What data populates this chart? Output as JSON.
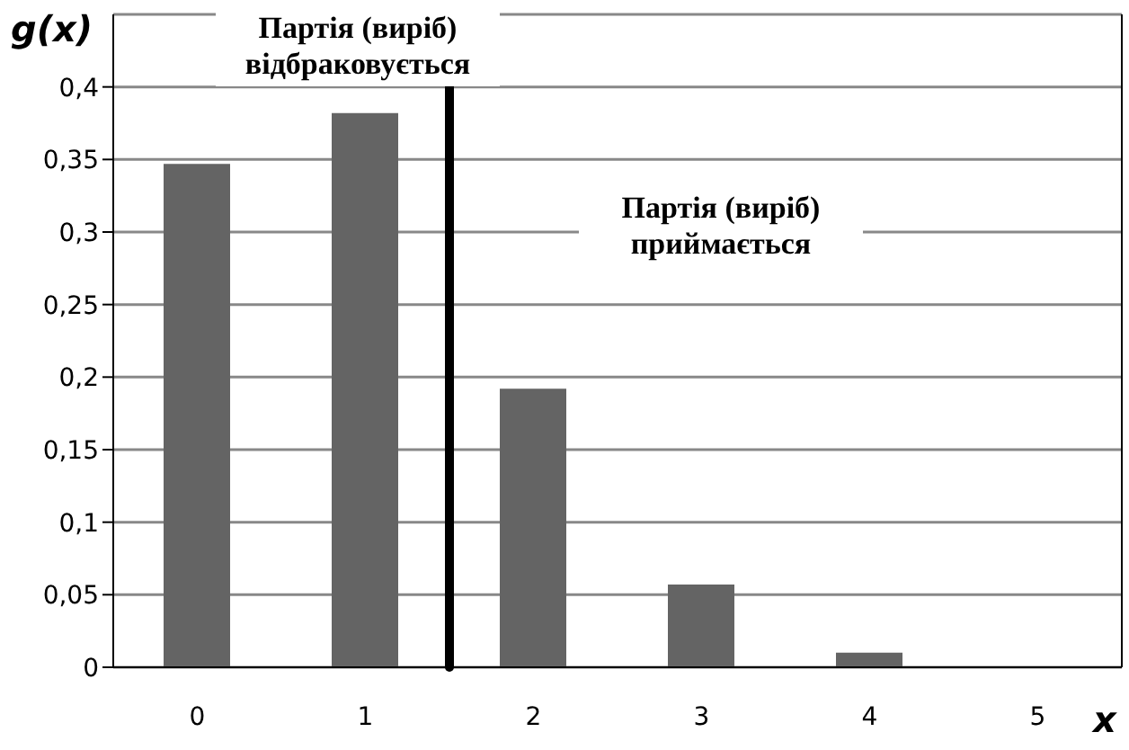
{
  "chart_data": {
    "type": "bar",
    "xlabel": "x",
    "ylabel": "g(x)",
    "x": [
      0,
      1,
      2,
      3,
      4,
      5
    ],
    "values": [
      0.347,
      0.382,
      0.192,
      0.057,
      0.01,
      0
    ],
    "color": "#646464",
    "xlim": [
      -0.5,
      5.5
    ],
    "xticks": [
      0,
      1,
      2,
      3,
      4,
      5
    ],
    "ylim": [
      0,
      0.45
    ],
    "yticks": [
      0,
      {
        "value": 0.05,
        "label": "0,05"
      },
      {
        "value": 0.1,
        "label": "0,1"
      },
      {
        "value": 0.15,
        "label": "0,15"
      },
      {
        "value": 0.2,
        "label": "0,2"
      },
      {
        "value": 0.25,
        "label": "0,25"
      },
      {
        "value": 0.3,
        "label": "0,3"
      },
      {
        "value": 0.35,
        "label": "0,35"
      },
      {
        "value": 0.4,
        "label": "0,4"
      }
    ],
    "ref_lines": [
      {
        "axis": "x",
        "value": 1.5,
        "color": "#000000"
      }
    ],
    "annotations": [
      "Партія (виріб) відбраковується",
      "Партія (виріб) приймається"
    ],
    "grid": "y",
    "legend": false
  }
}
